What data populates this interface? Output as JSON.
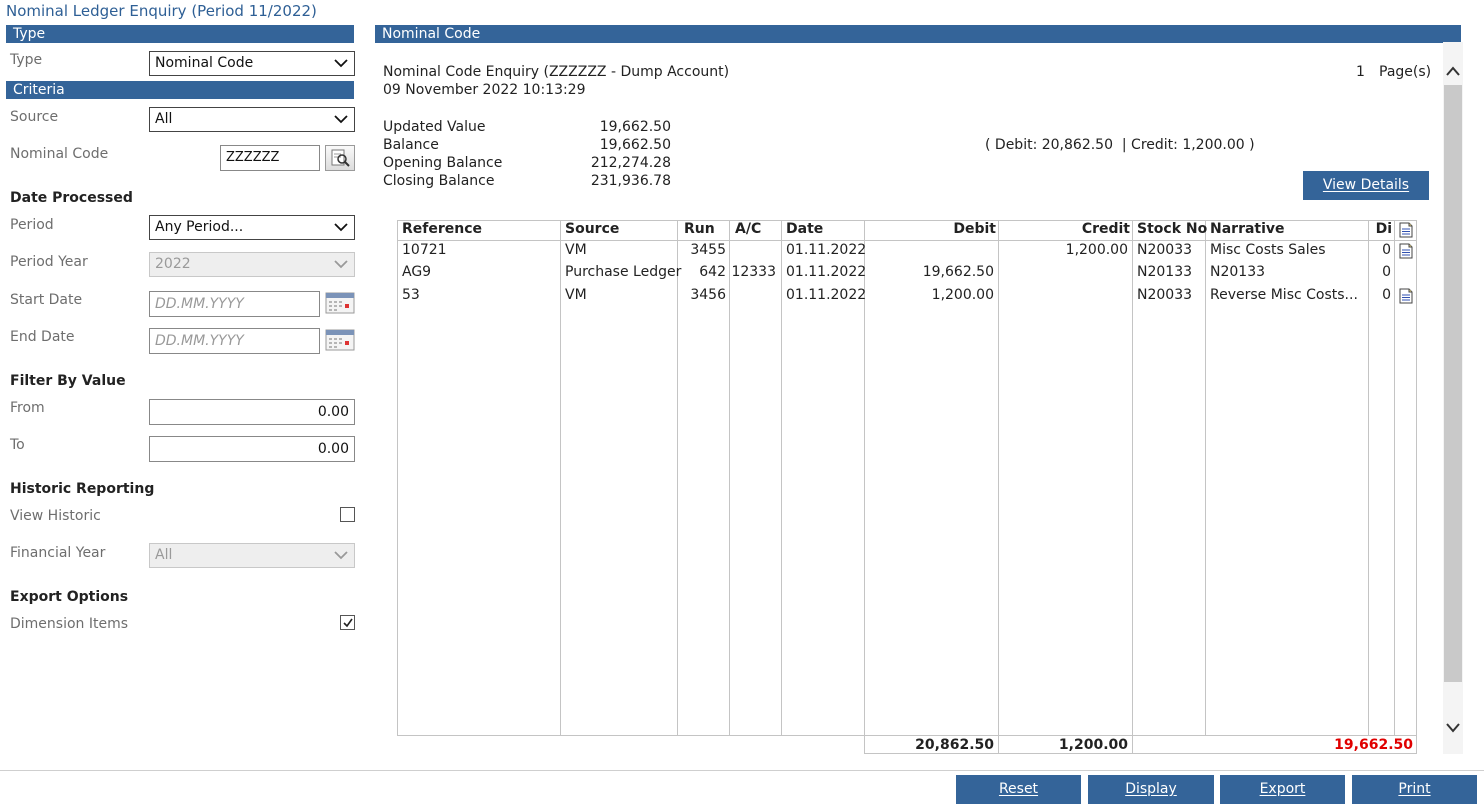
{
  "page_title": "Nominal Ledger Enquiry (Period 11/2022)",
  "left": {
    "type_section": "Type",
    "type_label": "Type",
    "type_value": "Nominal Code",
    "criteria_section": "Criteria",
    "source_label": "Source",
    "source_value": "All",
    "nominal_code_label": "Nominal Code",
    "nominal_code_value": "ZZZZZZ",
    "date_processed_header": "Date Processed",
    "period_label": "Period",
    "period_value": "Any Period...",
    "period_year_label": "Period Year",
    "period_year_value": "2022",
    "start_date_label": "Start Date",
    "start_date_placeholder": "DD.MM.YYYY",
    "end_date_label": "End Date",
    "end_date_placeholder": "DD.MM.YYYY",
    "filter_header": "Filter By Value",
    "from_label": "From",
    "from_value": "0.00",
    "to_label": "To",
    "to_value": "0.00",
    "historic_header": "Historic Reporting",
    "view_historic_label": "View Historic",
    "view_historic_checked": false,
    "financial_year_label": "Financial Year",
    "financial_year_value": "All",
    "export_header": "Export Options",
    "dimension_items_label": "Dimension Items",
    "dimension_items_checked": true
  },
  "right": {
    "section": "Nominal Code",
    "enquiry_title": "Nominal Code Enquiry (ZZZZZZ - Dump Account)",
    "enquiry_datetime": "09 November 2022 10:13:29",
    "pages_count": "1",
    "pages_label": "Page(s)",
    "summary": [
      {
        "label": "Updated Value",
        "value": "19,662.50"
      },
      {
        "label": "Balance",
        "value": "19,662.50"
      },
      {
        "label": "Opening Balance",
        "value": "212,274.28"
      },
      {
        "label": "Closing Balance",
        "value": "231,936.78"
      }
    ],
    "debit_credit_note": "( Debit: 20,862.50  | Credit: 1,200.00 )",
    "view_details_label": "View Details",
    "table": {
      "headers": [
        "Reference",
        "Source",
        "Run",
        "A/C",
        "Date",
        "Debit",
        "Credit",
        "Stock No",
        "Narrative",
        "Di"
      ],
      "rows": [
        [
          "10721",
          "VM",
          "3455",
          "",
          "01.11.2022",
          "",
          "1,200.00",
          "N20033",
          "Misc Costs Sales",
          "0"
        ],
        [
          "AG9",
          "Purchase Ledger",
          "642",
          "12333",
          "01.11.2022",
          "19,662.50",
          "",
          "N20133",
          "N20133",
          "0"
        ],
        [
          "53",
          "VM",
          "3456",
          "",
          "01.11.2022",
          "1,200.00",
          "",
          "N20033",
          "Reverse Misc Costs...",
          "0"
        ]
      ],
      "total_debit": "20,862.50",
      "total_credit": "1,200.00",
      "total_balance": "19,662.50"
    }
  },
  "footer": {
    "reset_label": "Reset",
    "display_label": "Display",
    "export_label": "Export",
    "print_label": "Print"
  },
  "colors": {
    "accent": "#346499",
    "title": "#2e5f95",
    "negative": "#e00000"
  },
  "icons": [
    "chevron-down-icon",
    "calendar-icon",
    "lookup-icon",
    "document-icon",
    "chevron-up-icon"
  ]
}
